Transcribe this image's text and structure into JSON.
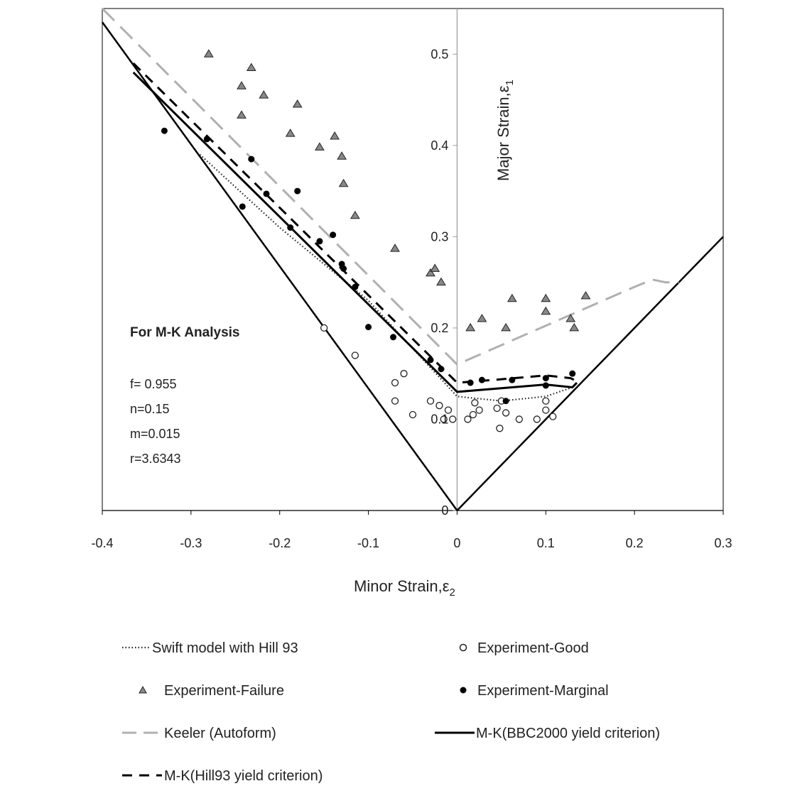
{
  "chart_data": {
    "type": "scatter",
    "xlabel_main": "Minor Strain,ε",
    "xlabel_sub": "2",
    "ylabel_main": "Major Strain,ε",
    "ylabel_sub": "1",
    "xlim": [
      -0.4,
      0.3
    ],
    "ylim": [
      0,
      0.55
    ],
    "x_ticks": [
      "-0.4",
      "-0.3",
      "-0.2",
      "-0.1",
      "0",
      "0.1",
      "0.2",
      "0.3"
    ],
    "x_tick_values": [
      -0.4,
      -0.3,
      -0.2,
      -0.1,
      0,
      0.1,
      0.2,
      0.3
    ],
    "y_ticks": [
      "0",
      "0.1",
      "0.2",
      "0.3",
      "0.4",
      "0.5"
    ],
    "y_tick_values": [
      0,
      0.1,
      0.2,
      0.3,
      0.4,
      0.5
    ],
    "grid": false,
    "legend_position": "bottom",
    "annotation": {
      "title": "For M-K Analysis",
      "params": [
        "f= 0.955",
        "n=0.15",
        "m=0.015",
        "r=3.6343"
      ]
    },
    "series": [
      {
        "name": "Swift model with Hill 93",
        "kind": "line",
        "style": "dotted",
        "color": "#222222",
        "points": [
          [
            -0.29,
            0.39
          ],
          [
            -0.2,
            0.31
          ],
          [
            -0.1,
            0.23
          ],
          [
            0,
            0.125
          ],
          [
            0.05,
            0.12
          ],
          [
            0.1,
            0.125
          ],
          [
            0.13,
            0.135
          ]
        ]
      },
      {
        "name": "Experiment-Good",
        "kind": "scatter",
        "marker": "open-circle",
        "color": "#222222",
        "points": [
          [
            -0.15,
            0.2
          ],
          [
            -0.115,
            0.17
          ],
          [
            -0.07,
            0.14
          ],
          [
            -0.06,
            0.15
          ],
          [
            -0.07,
            0.12
          ],
          [
            -0.05,
            0.105
          ],
          [
            -0.03,
            0.12
          ],
          [
            -0.02,
            0.115
          ],
          [
            -0.015,
            0.1
          ],
          [
            -0.01,
            0.11
          ],
          [
            -0.005,
            0.1
          ],
          [
            0.012,
            0.1
          ],
          [
            0.018,
            0.105
          ],
          [
            0.02,
            0.118
          ],
          [
            0.025,
            0.11
          ],
          [
            0.045,
            0.112
          ],
          [
            0.048,
            0.09
          ],
          [
            0.05,
            0.12
          ],
          [
            0.055,
            0.107
          ],
          [
            0.07,
            0.1
          ],
          [
            0.09,
            0.1
          ],
          [
            0.1,
            0.12
          ],
          [
            0.1,
            0.11
          ],
          [
            0.108,
            0.103
          ]
        ]
      },
      {
        "name": "Experiment-Failure",
        "kind": "scatter",
        "marker": "triangle",
        "color": "#888888",
        "points": [
          [
            -0.28,
            0.5
          ],
          [
            -0.232,
            0.485
          ],
          [
            -0.243,
            0.465
          ],
          [
            -0.218,
            0.455
          ],
          [
            -0.18,
            0.445
          ],
          [
            -0.243,
            0.433
          ],
          [
            -0.188,
            0.413
          ],
          [
            -0.155,
            0.398
          ],
          [
            -0.138,
            0.41
          ],
          [
            -0.13,
            0.388
          ],
          [
            -0.128,
            0.358
          ],
          [
            -0.115,
            0.323
          ],
          [
            -0.07,
            0.287
          ],
          [
            -0.03,
            0.26
          ],
          [
            -0.025,
            0.265
          ],
          [
            -0.018,
            0.25
          ],
          [
            0.015,
            0.2
          ],
          [
            0.028,
            0.21
          ],
          [
            0.055,
            0.2
          ],
          [
            0.062,
            0.232
          ],
          [
            0.1,
            0.232
          ],
          [
            0.1,
            0.218
          ],
          [
            0.128,
            0.21
          ],
          [
            0.132,
            0.2
          ],
          [
            0.145,
            0.235
          ]
        ]
      },
      {
        "name": "Experiment-Marginal",
        "kind": "scatter",
        "marker": "filled-circle",
        "color": "#000000",
        "points": [
          [
            -0.33,
            0.416
          ],
          [
            -0.282,
            0.407
          ],
          [
            -0.232,
            0.385
          ],
          [
            -0.242,
            0.333
          ],
          [
            -0.215,
            0.347
          ],
          [
            -0.18,
            0.35
          ],
          [
            -0.188,
            0.31
          ],
          [
            -0.155,
            0.295
          ],
          [
            -0.14,
            0.302
          ],
          [
            -0.13,
            0.27
          ],
          [
            -0.128,
            0.265
          ],
          [
            -0.115,
            0.245
          ],
          [
            -0.1,
            0.201
          ],
          [
            -0.072,
            0.19
          ],
          [
            -0.03,
            0.165
          ],
          [
            -0.018,
            0.155
          ],
          [
            0.015,
            0.14
          ],
          [
            0.028,
            0.143
          ],
          [
            0.062,
            0.143
          ],
          [
            0.055,
            0.12
          ],
          [
            0.1,
            0.145
          ],
          [
            0.1,
            0.137
          ],
          [
            0.13,
            0.15
          ]
        ]
      },
      {
        "name": "Keeler (Autoform)",
        "kind": "line",
        "style": "long-dash",
        "color": "#b0b0b0",
        "points": [
          [
            -0.4,
            0.55
          ],
          [
            0,
            0.16
          ],
          [
            0.2,
            0.245
          ],
          [
            0.22,
            0.253
          ],
          [
            0.235,
            0.25
          ],
          [
            0.25,
            0.25
          ]
        ]
      },
      {
        "name": "M-K(BBC2000 yield criterion)",
        "kind": "line",
        "style": "solid",
        "color": "#000000",
        "points": [
          [
            -0.365,
            0.48
          ],
          [
            0,
            0.13
          ],
          [
            0.1,
            0.138
          ],
          [
            0.13,
            0.135
          ],
          [
            0.135,
            0.14
          ]
        ]
      },
      {
        "name": "M-K(Hill93 yield criterion)",
        "kind": "line",
        "style": "dash",
        "color": "#000000",
        "points": [
          [
            -0.365,
            0.49
          ],
          [
            0,
            0.14
          ],
          [
            0.04,
            0.143
          ],
          [
            0.1,
            0.148
          ],
          [
            0.128,
            0.145
          ],
          [
            0.138,
            0.14
          ]
        ]
      }
    ],
    "boundary_lines": [
      [
        [
          -0.4,
          0.535
        ],
        [
          0,
          0
        ]
      ],
      [
        [
          0,
          0
        ],
        [
          0.3,
          0.3
        ]
      ]
    ]
  }
}
